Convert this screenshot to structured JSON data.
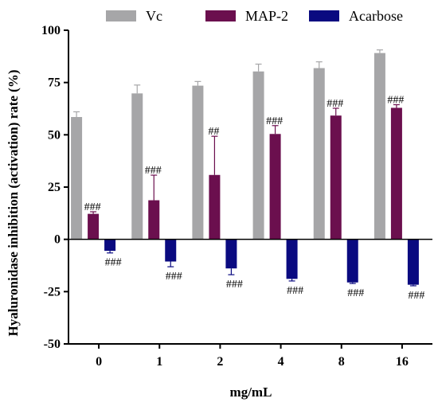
{
  "chart_data": {
    "type": "bar",
    "xlabel": "mg/mL",
    "ylabel": "Hyaluronidase inhibition (activation) rate (%)",
    "ylim": [
      -50,
      100
    ],
    "yticks": [
      -50,
      -25,
      0,
      25,
      50,
      75,
      100
    ],
    "ytick_labels": [
      "-50",
      "-25",
      "0",
      "25",
      "50",
      "75",
      "100"
    ],
    "categories": [
      "0",
      "1",
      "2",
      "4",
      "8",
      "16"
    ],
    "legend_position": "top",
    "grid": false,
    "series": [
      {
        "name": "Vc",
        "color": "#a6a6a8",
        "values": [
          58.5,
          69.8,
          73.5,
          80.3,
          81.9,
          89.1
        ],
        "errors": [
          2.5,
          4.0,
          2.0,
          3.5,
          3.0,
          1.5
        ],
        "annotations": [
          "",
          "",
          "",
          "",
          "",
          ""
        ]
      },
      {
        "name": "MAP-2",
        "color": "#6b0f4e",
        "values": [
          12.2,
          18.7,
          30.8,
          50.4,
          59.2,
          62.9
        ],
        "errors": [
          1.0,
          12.0,
          18.5,
          4.0,
          3.5,
          1.5
        ],
        "annotations": [
          "###",
          "###",
          "##",
          "###",
          "###",
          "###"
        ]
      },
      {
        "name": "Acarbose",
        "color": "#0a0a80",
        "values": [
          -5.5,
          -10.6,
          -13.9,
          -18.9,
          -20.6,
          -21.7
        ],
        "errors": [
          1.0,
          2.5,
          3.0,
          1.0,
          0.5,
          0.5
        ],
        "annotations": [
          "###",
          "###",
          "###",
          "###",
          "###",
          "###"
        ]
      }
    ]
  }
}
